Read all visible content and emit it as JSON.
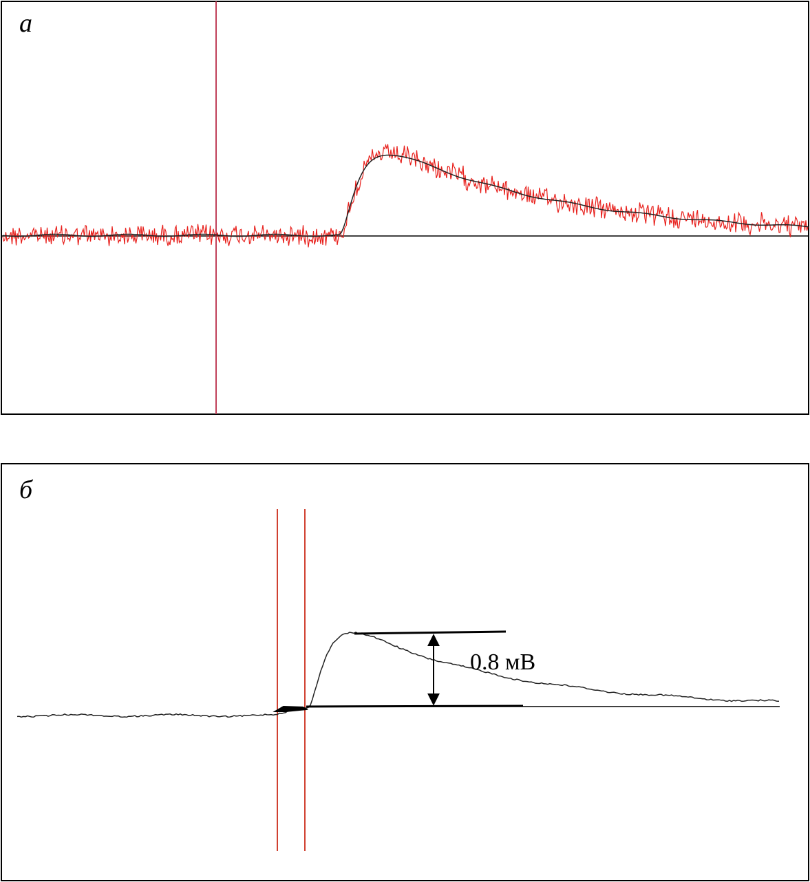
{
  "panels": [
    {
      "label": "а"
    },
    {
      "label": "б",
      "annotation": "0.8 мВ"
    }
  ]
}
